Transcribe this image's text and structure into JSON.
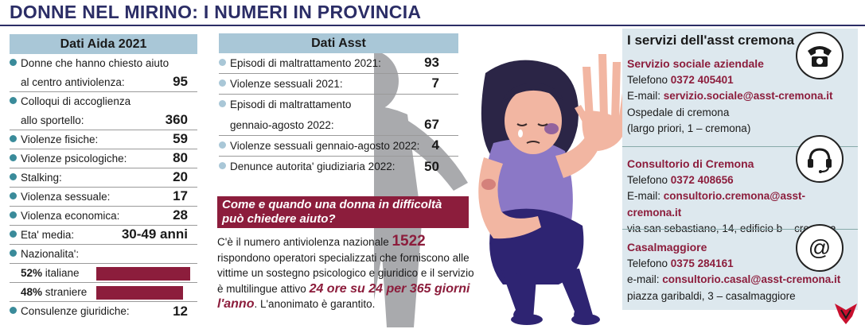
{
  "headline": "DONNE NEL MIRINO: I NUMERI IN PROVINCIA",
  "aida": {
    "title": "Dati Aida 2021",
    "rows": [
      {
        "label": "Donne che hanno chiesto aiuto",
        "label2": "al centro antiviolenza:",
        "value": "95"
      },
      {
        "label": "Colloqui di accoglienza",
        "label2": "allo sportello:",
        "value": "360"
      },
      {
        "label": "Violenze fisiche:",
        "value": "59"
      },
      {
        "label": "Violenze psicologiche:",
        "value": "80"
      },
      {
        "label": "Stalking:",
        "value": "20"
      },
      {
        "label": "Violenza sessuale:",
        "value": "17"
      },
      {
        "label": "Violenza economica:",
        "value": "28"
      },
      {
        "label": "Eta' media:",
        "value": "30-49 anni"
      }
    ],
    "nationality_label": "Nazionalita':",
    "nationality": [
      {
        "pct": "52%",
        "text": " italiane",
        "value": 52
      },
      {
        "pct": "48%",
        "text": " straniere",
        "value": 48
      }
    ],
    "legal_label": "Consulenze giuridiche:",
    "legal_value": "12",
    "bar_color": "#8c1d3c"
  },
  "asst": {
    "title": "Dati Asst",
    "rows": [
      {
        "label": "Episodi di maltrattamento 2021:",
        "value": "93"
      },
      {
        "label": "Violenze sessuali 2021:",
        "value": "7"
      },
      {
        "label": "Episodi di maltrattamento",
        "label2": "gennaio-agosto 2022:",
        "value": "67"
      },
      {
        "label": "Violenze sessuali gennaio-agosto 2022:",
        "value": "4"
      },
      {
        "label": "Denunce autorita' giudiziaria 2022:",
        "value": "50"
      }
    ]
  },
  "help": {
    "question": "Come e quando una donna in difficoltà può chiedere aiuto?",
    "t1": "C'è il numero antiviolenza nazionale ",
    "number": "1522",
    "t2": " rispondono operatori specializzati che forniscono alle vittime un sostegno psicologico e giuridico e il servizio è multilingue attivo ",
    "hours": "24 ore su 24 per 365 giorni l'anno",
    "t3": ". L'anonimato è garantito."
  },
  "services": {
    "title": "I servizi dell'asst cremona",
    "blocks": [
      {
        "name": "Servizio sociale aziendale",
        "phone_label": "Telefono ",
        "phone": "0372 405401",
        "email_label": "E-mail: ",
        "email": "servizio.sociale@asst-cremona.it",
        "addr1": "Ospedale di cremona",
        "addr2": "(largo priori, 1 – cremona)",
        "icon": "phone-icon"
      },
      {
        "name": "Consultorio di Cremona",
        "phone_label": "Telefono ",
        "phone": "0372 408656",
        "email_label": "E-mail: ",
        "email": "consultorio.cremona@asst-cremona.it",
        "addr1": "via san sebastiano, 14, edificio b – cremona",
        "icon": "headset-icon"
      },
      {
        "name": "Casalmaggiore",
        "phone_label": "Telefono ",
        "phone": "0375 284161",
        "email_label": "e-mail: ",
        "email": "consultorio.casal@asst-cremona.it",
        "addr1": "piazza garibaldi, 3 – casalmaggiore",
        "icon": "at-sign-icon"
      }
    ]
  },
  "colors": {
    "accent": "#8c1d3c",
    "header_blue": "#a9c7d7",
    "panel": "#dde8ee",
    "title": "#2b2d66",
    "bullet": "#3a8b9a"
  }
}
